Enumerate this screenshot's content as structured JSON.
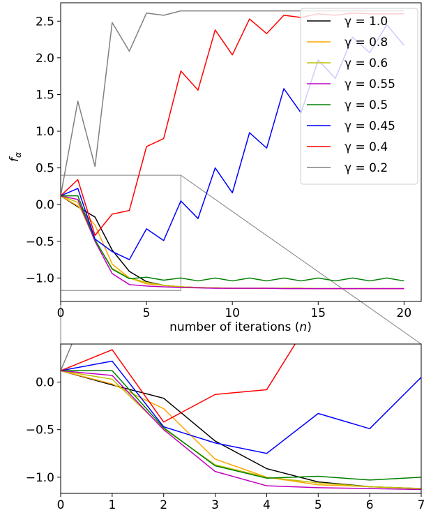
{
  "chart_data": [
    {
      "type": "line",
      "xlabel": "number of iterations (n)",
      "ylabel": "f_α",
      "xlim": [
        0,
        21
      ],
      "ylim": [
        -1.32,
        2.75
      ],
      "x_ticks": [
        "0",
        "5",
        "10",
        "15",
        "20"
      ],
      "y_ticks": [
        "−1.0",
        "−0.5",
        "0.0",
        "0.5",
        "1.0",
        "1.5",
        "2.0",
        "2.5"
      ],
      "legend_position": "top-right",
      "grid": false,
      "x": [
        0,
        1,
        2,
        3,
        4,
        5,
        6,
        7,
        8,
        9,
        10,
        11,
        12,
        13,
        14,
        15,
        16,
        17,
        18,
        19,
        20
      ],
      "series": [
        {
          "name": "γ = 1.0",
          "color": "#000000",
          "values": [
            0.12,
            -0.03,
            -0.17,
            -0.62,
            -0.91,
            -1.05,
            -1.1,
            -1.12,
            -1.13,
            -1.135,
            -1.14,
            -1.14,
            -1.14,
            -1.14,
            -1.14,
            -1.145,
            -1.145,
            -1.145,
            -1.145,
            -1.145,
            -1.145
          ]
        },
        {
          "name": "γ = 0.8",
          "color": "#FFA500",
          "values": [
            0.12,
            -0.02,
            -0.28,
            -0.81,
            -1.0,
            -1.08,
            -1.1,
            -1.12,
            -1.13,
            -1.135,
            -1.14,
            -1.14,
            -1.14,
            -1.14,
            -1.14,
            -1.145,
            -1.145,
            -1.145,
            -1.145,
            -1.145,
            -1.145
          ]
        },
        {
          "name": "γ = 0.6",
          "color": "#BFBF00",
          "values": [
            0.12,
            0.03,
            -0.49,
            -0.87,
            -1.0,
            -1.06,
            -1.1,
            -1.12,
            -1.13,
            -1.135,
            -1.14,
            -1.14,
            -1.14,
            -1.14,
            -1.14,
            -1.145,
            -1.145,
            -1.145,
            -1.145,
            -1.145,
            -1.145
          ]
        },
        {
          "name": "γ = 0.55",
          "color": "#BF00BF",
          "values": [
            0.12,
            0.07,
            -0.5,
            -0.94,
            -1.09,
            -1.11,
            -1.12,
            -1.13,
            -1.135,
            -1.14,
            -1.14,
            -1.14,
            -1.14,
            -1.145,
            -1.145,
            -1.145,
            -1.145,
            -1.145,
            -1.145,
            -1.145,
            -1.145
          ]
        },
        {
          "name": "γ = 0.5",
          "color": "#008000",
          "values": [
            0.12,
            0.12,
            -0.48,
            -0.88,
            -1.01,
            -0.99,
            -1.03,
            -1.0,
            -1.04,
            -1.0,
            -1.04,
            -1.0,
            -1.04,
            -1.0,
            -1.04,
            -1.0,
            -1.04,
            -1.0,
            -1.04,
            -1.0,
            -1.04
          ]
        },
        {
          "name": "γ = 0.45",
          "color": "#0000FF",
          "values": [
            0.12,
            0.22,
            -0.47,
            -0.64,
            -0.75,
            -0.33,
            -0.49,
            0.05,
            -0.19,
            0.5,
            0.16,
            0.98,
            0.77,
            1.58,
            1.25,
            1.97,
            1.72,
            2.28,
            2.07,
            2.45,
            2.17
          ]
        },
        {
          "name": "γ = 0.4",
          "color": "#FF0000",
          "values": [
            0.12,
            0.34,
            -0.42,
            -0.13,
            -0.08,
            0.79,
            0.9,
            1.82,
            1.56,
            2.38,
            2.04,
            2.53,
            2.33,
            2.58,
            2.55,
            2.6,
            2.58,
            2.61,
            2.6,
            2.6,
            2.6
          ]
        },
        {
          "name": "γ = 0.2",
          "color": "#808080",
          "values": [
            0.12,
            1.41,
            0.52,
            2.48,
            2.09,
            2.61,
            2.58,
            2.64,
            2.64,
            2.64,
            2.64,
            2.64,
            2.64,
            2.64,
            2.64,
            2.64,
            2.64,
            2.64,
            2.64,
            2.64,
            2.64
          ]
        }
      ]
    },
    {
      "type": "line",
      "xlabel": "",
      "ylabel": "",
      "xlim": [
        0,
        7
      ],
      "ylim": [
        -1.17,
        0.4
      ],
      "x_ticks": [
        "0",
        "1",
        "2",
        "3",
        "4",
        "5",
        "6",
        "7"
      ],
      "y_ticks": [
        "−1.0",
        "−0.5",
        "0.0"
      ],
      "grid": false,
      "x": [
        0,
        1,
        2,
        3,
        4,
        5,
        6,
        7
      ],
      "series_ref": "same series as panel 1, x in [0, 7]"
    }
  ]
}
